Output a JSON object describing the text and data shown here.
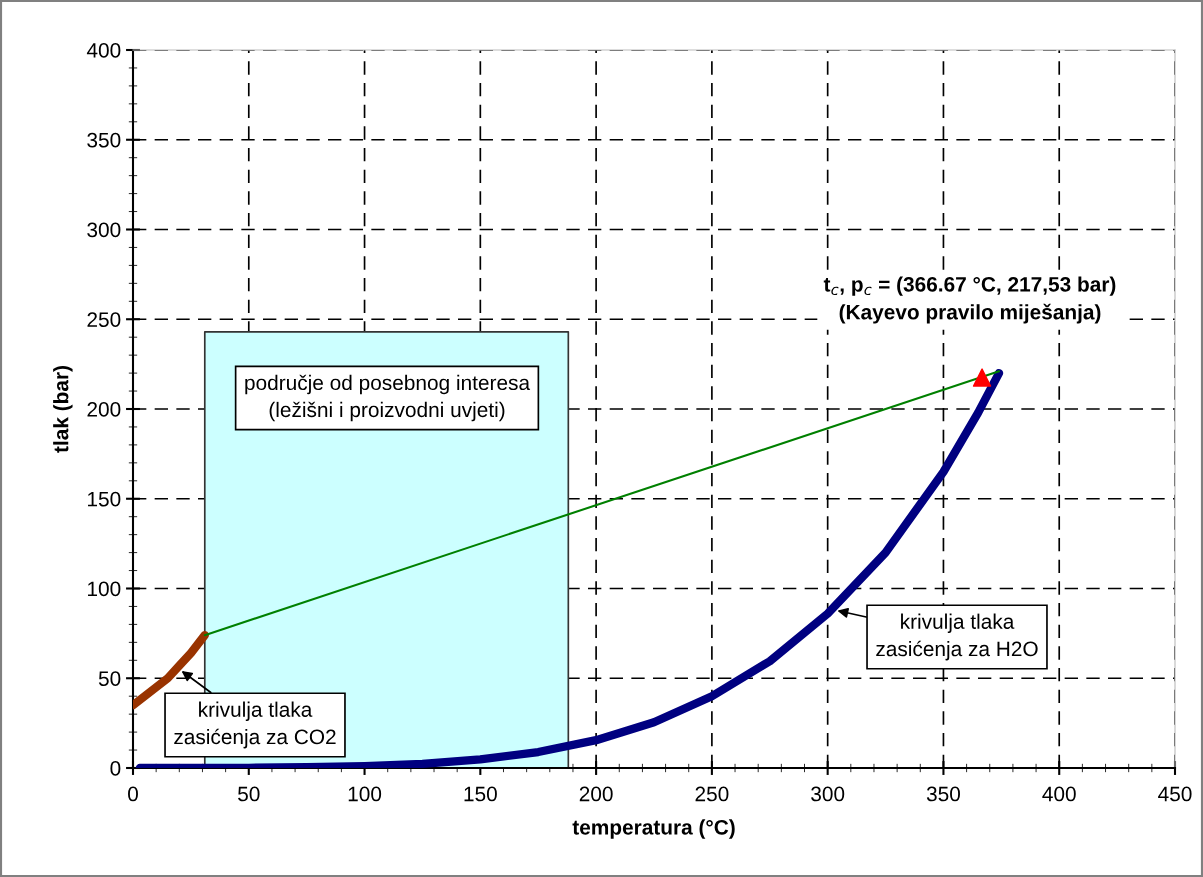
{
  "chart_data": {
    "type": "line",
    "xlabel": "temperatura (°C)",
    "ylabel": "tlak (bar)",
    "xlim": [
      0,
      450
    ],
    "xticks": [
      0,
      50,
      100,
      150,
      200,
      250,
      300,
      350,
      400,
      450
    ],
    "ylim": [
      0,
      400
    ],
    "yticks": [
      0,
      50,
      100,
      150,
      200,
      250,
      300,
      350,
      400
    ],
    "grid": true,
    "series": [
      {
        "type": "area",
        "color": "#ccffff",
        "x": [
          31,
          188
        ],
        "values": [
          243,
          243
        ]
      },
      {
        "color": "#993300",
        "x": [
          0,
          5,
          10,
          15,
          20,
          25,
          31
        ],
        "values": [
          35,
          40,
          45,
          50,
          57,
          64,
          74
        ]
      },
      {
        "color": "#000080",
        "x": [
          3,
          25,
          50,
          75,
          100,
          125,
          150,
          175,
          200,
          225,
          250,
          275,
          300,
          325,
          350,
          365,
          374
        ],
        "values": [
          0,
          0,
          0.1,
          0.4,
          1,
          2.3,
          4.8,
          8.9,
          15.5,
          25.5,
          40,
          59.5,
          86,
          120,
          165,
          198,
          220
        ]
      },
      {
        "color": "#008000",
        "x": [
          31,
          374
        ],
        "values": [
          74,
          221
        ]
      },
      {
        "type": "scatter",
        "color": "#ff0000",
        "marker": "triangle",
        "x": [
          366.67
        ],
        "values": [
          217.5
        ]
      }
    ],
    "annotations": [
      "područje od posebnog interesa\n(ležišni i proizvodni uvjeti)",
      {
        "text": "krivulja tlaka\nzasićenja za CO2",
        "x": 20,
        "y": 55
      },
      {
        "text": "krivulja tlaka\nzasićenja za H2O",
        "x": 303,
        "y": 88
      },
      {
        "text": "t$_{c}$, p$_{c}$ = (366.67 °C, 217,53 bar)\n(Kayevo pravilo miješanja)",
        "x": 366.67,
        "y": 217.5
      }
    ]
  }
}
